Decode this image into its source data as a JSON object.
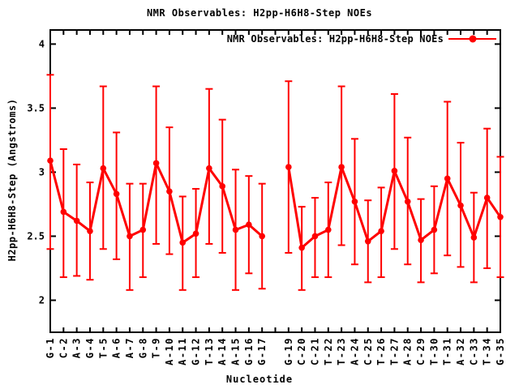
{
  "chart_data": {
    "type": "line",
    "title": "NMR Observables: H2pp-H6H8-Step NOEs",
    "xlabel": "Nucleotide",
    "ylabel": "H2pp-H6H8-Step (Angstroms)",
    "legend": {
      "label": "NMR Observables: H2pp-H6H8-Step NOEs",
      "position": "top-right-inside"
    },
    "series_color": "#ff0000",
    "frame_color": "#000000",
    "background_color": "#ffffff",
    "grid": false,
    "marker": "filled-circle",
    "error_bars": true,
    "ylim": [
      1.75,
      4.11
    ],
    "yticks": [
      2,
      2.5,
      3,
      3.5,
      4
    ],
    "ytick_labels": [
      "2",
      "2.5",
      "3",
      "3.5",
      "4"
    ],
    "xlim": [
      1,
      35
    ],
    "missing_x_positions": [
      18
    ],
    "points": [
      {
        "x": 1,
        "label": "G-1",
        "y": 3.09,
        "ylow": 2.4,
        "yhigh": 3.76
      },
      {
        "x": 2,
        "label": "C-2",
        "y": 2.69,
        "ylow": 2.18,
        "yhigh": 3.18
      },
      {
        "x": 3,
        "label": "A-3",
        "y": 2.62,
        "ylow": 2.19,
        "yhigh": 3.06
      },
      {
        "x": 4,
        "label": "G-4",
        "y": 2.54,
        "ylow": 2.16,
        "yhigh": 2.92
      },
      {
        "x": 5,
        "label": "T-5",
        "y": 3.03,
        "ylow": 2.4,
        "yhigh": 3.67
      },
      {
        "x": 6,
        "label": "A-6",
        "y": 2.83,
        "ylow": 2.32,
        "yhigh": 3.31
      },
      {
        "x": 7,
        "label": "A-7",
        "y": 2.5,
        "ylow": 2.08,
        "yhigh": 2.91
      },
      {
        "x": 8,
        "label": "G-8",
        "y": 2.55,
        "ylow": 2.18,
        "yhigh": 2.91
      },
      {
        "x": 9,
        "label": "T-9",
        "y": 3.07,
        "ylow": 2.44,
        "yhigh": 3.67
      },
      {
        "x": 10,
        "label": "A-10",
        "y": 2.85,
        "ylow": 2.36,
        "yhigh": 3.35
      },
      {
        "x": 11,
        "label": "A-11",
        "y": 2.45,
        "ylow": 2.08,
        "yhigh": 2.81
      },
      {
        "x": 12,
        "label": "G-12",
        "y": 2.52,
        "ylow": 2.18,
        "yhigh": 2.87
      },
      {
        "x": 13,
        "label": "T-13",
        "y": 3.03,
        "ylow": 2.44,
        "yhigh": 3.65
      },
      {
        "x": 14,
        "label": "A-14",
        "y": 2.89,
        "ylow": 2.37,
        "yhigh": 3.41
      },
      {
        "x": 15,
        "label": "A-15",
        "y": 2.55,
        "ylow": 2.08,
        "yhigh": 3.02
      },
      {
        "x": 16,
        "label": "G-16",
        "y": 2.59,
        "ylow": 2.21,
        "yhigh": 2.97
      },
      {
        "x": 17,
        "label": "G-17",
        "y": 2.5,
        "ylow": 2.09,
        "yhigh": 2.91
      },
      {
        "x": 19,
        "label": "G-19",
        "y": 3.04,
        "ylow": 2.37,
        "yhigh": 3.71
      },
      {
        "x": 20,
        "label": "C-20",
        "y": 2.41,
        "ylow": 2.08,
        "yhigh": 2.73
      },
      {
        "x": 21,
        "label": "C-21",
        "y": 2.5,
        "ylow": 2.18,
        "yhigh": 2.8
      },
      {
        "x": 22,
        "label": "T-22",
        "y": 2.55,
        "ylow": 2.18,
        "yhigh": 2.92
      },
      {
        "x": 23,
        "label": "T-23",
        "y": 3.04,
        "ylow": 2.43,
        "yhigh": 3.67
      },
      {
        "x": 24,
        "label": "A-24",
        "y": 2.77,
        "ylow": 2.28,
        "yhigh": 3.26
      },
      {
        "x": 25,
        "label": "C-25",
        "y": 2.46,
        "ylow": 2.14,
        "yhigh": 2.78
      },
      {
        "x": 26,
        "label": "T-26",
        "y": 2.54,
        "ylow": 2.18,
        "yhigh": 2.88
      },
      {
        "x": 27,
        "label": "T-27",
        "y": 3.01,
        "ylow": 2.4,
        "yhigh": 3.61
      },
      {
        "x": 28,
        "label": "A-28",
        "y": 2.77,
        "ylow": 2.28,
        "yhigh": 3.27
      },
      {
        "x": 29,
        "label": "C-29",
        "y": 2.47,
        "ylow": 2.14,
        "yhigh": 2.79
      },
      {
        "x": 30,
        "label": "T-30",
        "y": 2.55,
        "ylow": 2.21,
        "yhigh": 2.89
      },
      {
        "x": 31,
        "label": "T-31",
        "y": 2.95,
        "ylow": 2.35,
        "yhigh": 3.55
      },
      {
        "x": 32,
        "label": "A-32",
        "y": 2.74,
        "ylow": 2.26,
        "yhigh": 3.23
      },
      {
        "x": 33,
        "label": "C-33",
        "y": 2.49,
        "ylow": 2.14,
        "yhigh": 2.84
      },
      {
        "x": 34,
        "label": "T-34",
        "y": 2.8,
        "ylow": 2.25,
        "yhigh": 3.34
      },
      {
        "x": 35,
        "label": "G-35",
        "y": 2.65,
        "ylow": 2.18,
        "yhigh": 3.12
      }
    ]
  }
}
